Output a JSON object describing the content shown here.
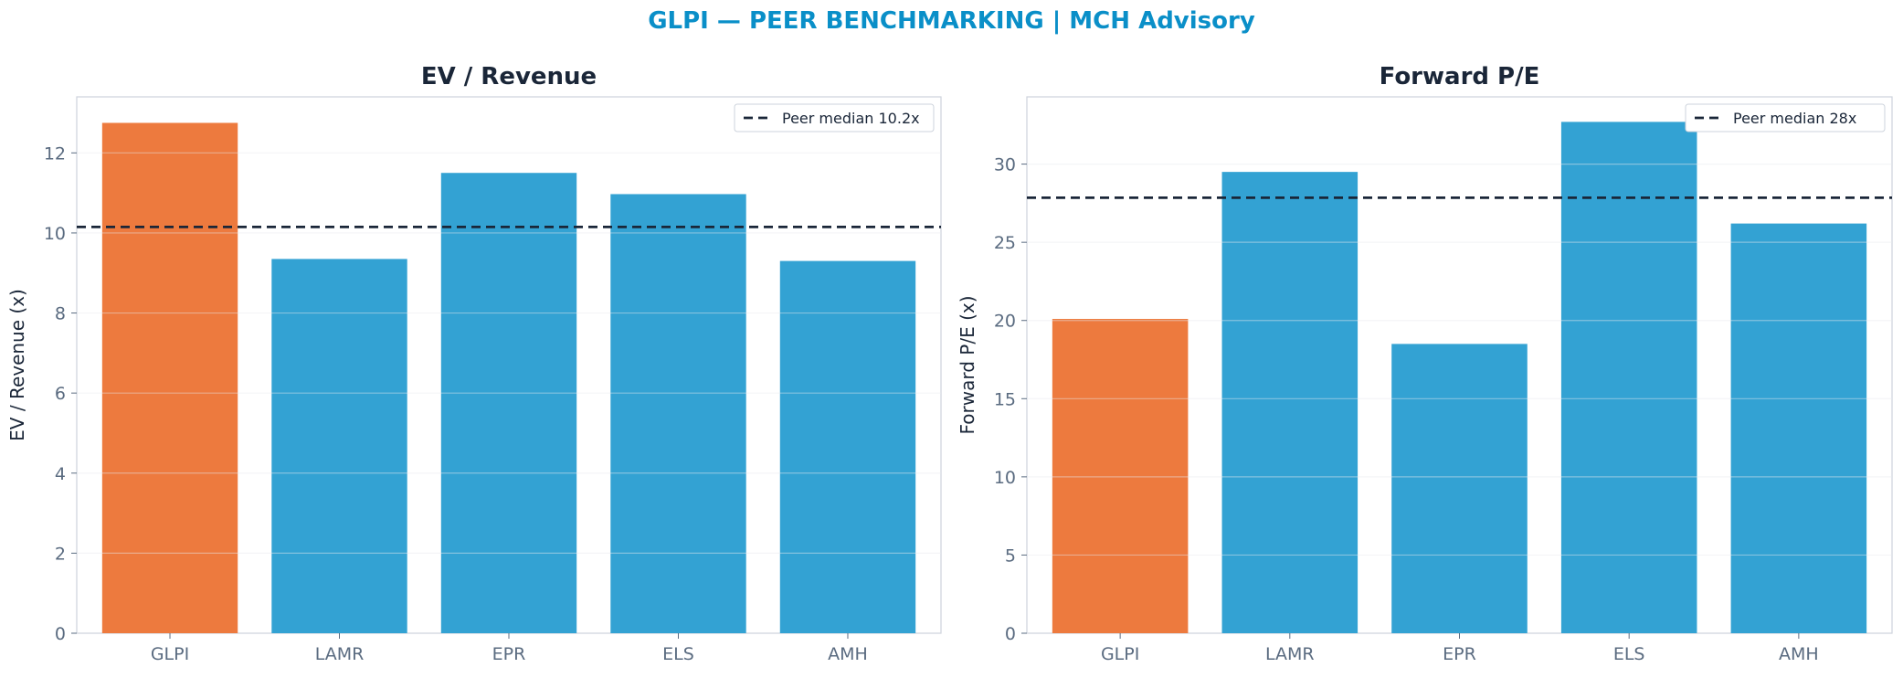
{
  "suptitle": "GLPI — PEER BENCHMARKING | MCH Advisory",
  "colors": {
    "highlight": "#ED7A3E",
    "peer": "#33A2D3",
    "median_line": "#1a2638",
    "title": "#0a8fc8"
  },
  "chart_data": [
    {
      "type": "bar",
      "title": "EV / Revenue",
      "ylabel": "EV / Revenue (x)",
      "categories": [
        "GLPI",
        "LAMR",
        "EPR",
        "ELS",
        "AMH"
      ],
      "values": [
        12.75,
        9.35,
        11.5,
        10.97,
        9.3
      ],
      "highlight": "GLPI",
      "ylim": [
        0,
        13.4
      ],
      "yticks": [
        0,
        2,
        4,
        6,
        8,
        10,
        12
      ],
      "median": 10.15,
      "legend": "Peer median 10.2x",
      "legend_position": "top-right",
      "grid": "horizontal"
    },
    {
      "type": "bar",
      "title": "Forward P/E",
      "ylabel": "Forward P/E (x)",
      "categories": [
        "GLPI",
        "LAMR",
        "EPR",
        "ELS",
        "AMH"
      ],
      "values": [
        20.1,
        29.5,
        18.5,
        32.7,
        26.2
      ],
      "highlight": "GLPI",
      "ylim": [
        0,
        34.3
      ],
      "yticks": [
        0,
        5,
        10,
        15,
        20,
        25,
        30
      ],
      "median": 27.85,
      "legend": "Peer median 28x",
      "legend_position": "top-right",
      "grid": "horizontal"
    }
  ]
}
